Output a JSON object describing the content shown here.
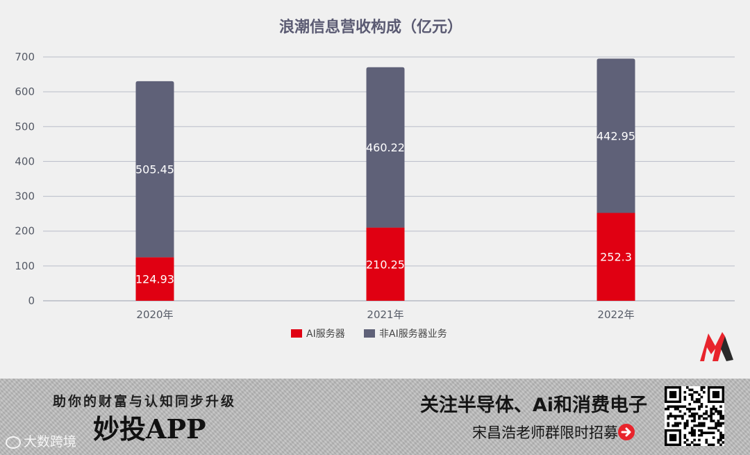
{
  "chart_data": {
    "type": "bar",
    "stacked": true,
    "title": "浪潮信息营收构成（亿元）",
    "categories": [
      "2020年",
      "2021年",
      "2022年"
    ],
    "series": [
      {
        "name": "AI服务器",
        "values": [
          124.93,
          210.25,
          252.3
        ],
        "color": "#e00012"
      },
      {
        "name": "非AI服务器业务",
        "values": [
          505.45,
          460.22,
          442.95
        ],
        "color": "#5f6178"
      }
    ],
    "data_labels": [
      [
        "124.93",
        "210.25",
        "252.3"
      ],
      [
        "505.45",
        "460.22",
        "442.95"
      ]
    ],
    "y_ticks": [
      "0",
      "100",
      "200",
      "300",
      "400",
      "500",
      "600",
      "700"
    ],
    "ylim": [
      0,
      700
    ],
    "grid": true,
    "legend_position": "bottom-center"
  },
  "banner": {
    "slogan": "助你的财富与认知同步升级",
    "app_name": "妙投APP",
    "headline": "关注半导体、Ai和消费电子",
    "subline": "宋昌浩老师群限时招募"
  },
  "watermark": {
    "text": "大数跨境"
  },
  "colors": {
    "ai": "#e00012",
    "non_ai": "#5f6178",
    "grid": "#b8bcc8",
    "accent": "#e8242c"
  },
  "icons": {
    "logo": "brand-m-logo-icon",
    "arrow": "arrow-right-circle-icon",
    "qr": "qr-code-icon"
  }
}
